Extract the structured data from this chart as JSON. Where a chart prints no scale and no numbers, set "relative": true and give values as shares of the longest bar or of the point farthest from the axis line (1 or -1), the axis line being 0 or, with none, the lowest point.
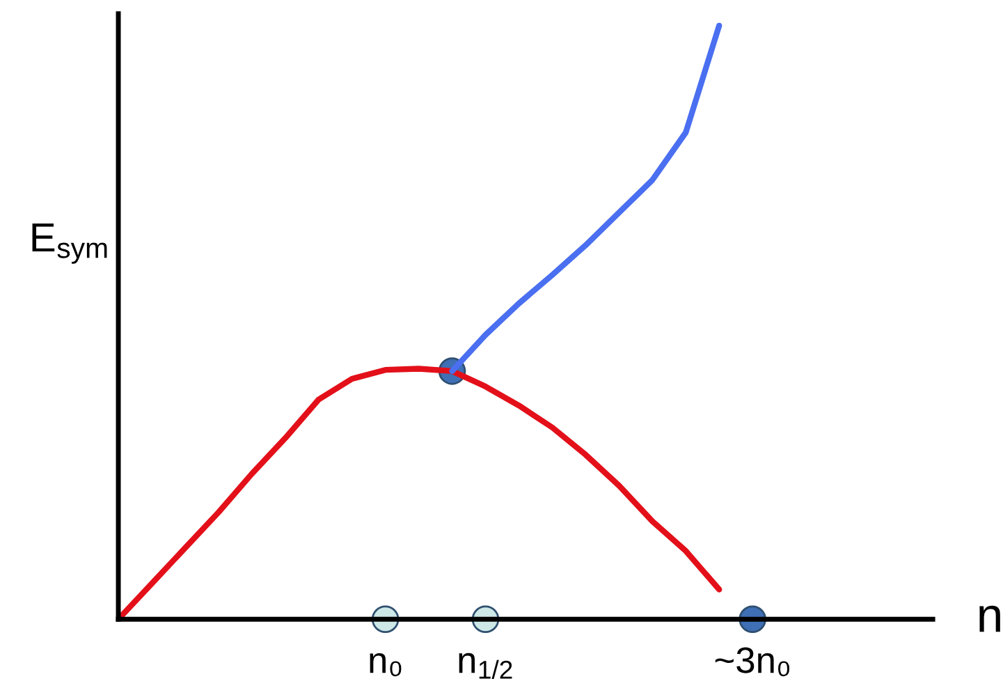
{
  "chart_data": {
    "type": "line",
    "relative": true,
    "xlabel": "n",
    "ylabel": "E$_{sym}$",
    "categories": [
      null,
      null,
      null,
      null,
      null,
      null,
      null,
      null,
      "n₀",
      null,
      null,
      "n$_{1/2}$",
      null,
      null,
      null,
      null,
      null,
      null,
      null,
      "~3n₀",
      null,
      null,
      null,
      null,
      null
    ],
    "grid": false,
    "marker": "none",
    "line_style": "solid",
    "series": [
      {
        "color": "#e3101a",
        "values": [
          0,
          0.06,
          0.12,
          0.18,
          0.245,
          0.305,
          0.37,
          0.405,
          0.42,
          0.422,
          0.418,
          0.392,
          0.36,
          0.323,
          0.277,
          0.225,
          0.165,
          0.115,
          0.05,
          null,
          null,
          null,
          null,
          null,
          null
        ]
      },
      {
        "color": "#4a6ff0",
        "values": [
          null,
          null,
          null,
          null,
          null,
          null,
          null,
          null,
          null,
          null,
          0.418,
          0.479,
          0.532,
          0.58,
          0.63,
          0.685,
          0.74,
          0.82,
          1.0,
          null,
          null,
          null,
          null,
          null,
          null
        ]
      },
      {
        "type": "scatter",
        "marker": "circle",
        "color": "#cde8e6",
        "values": [
          null,
          null,
          null,
          null,
          null,
          null,
          null,
          null,
          0,
          null,
          null,
          0,
          null,
          null,
          null,
          null,
          null,
          null,
          null,
          null,
          null,
          null,
          null,
          null,
          null
        ]
      },
      {
        "type": "scatter",
        "marker": "circle",
        "color": "#3f6fb5",
        "values": [
          null,
          null,
          null,
          null,
          null,
          null,
          null,
          null,
          null,
          null,
          0.418,
          null,
          null,
          null,
          null,
          null,
          null,
          null,
          null,
          0,
          null,
          null,
          null,
          null,
          null
        ]
      }
    ]
  }
}
